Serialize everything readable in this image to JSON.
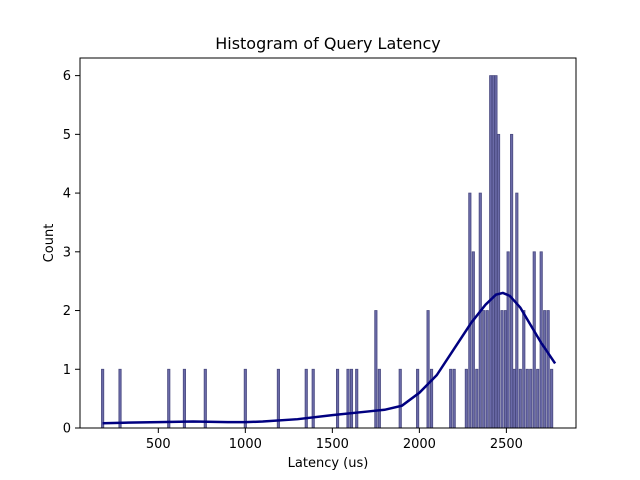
{
  "chart_data": {
    "type": "bar",
    "title": "Histogram of Query Latency",
    "xlabel": "Latency (us)",
    "ylabel": "Count",
    "xlim": [
      50,
      2900
    ],
    "ylim": [
      0,
      6.3
    ],
    "x_ticks": [
      500,
      1000,
      1500,
      2000,
      2500
    ],
    "y_ticks": [
      0,
      1,
      2,
      3,
      4,
      5,
      6
    ],
    "bin_width": 13.3,
    "bar_color": "#6a6aa8",
    "bar_edge_color": "#4a4a80",
    "kde_color": "#000080",
    "grid": false,
    "bins": [
      {
        "x": 180,
        "count": 1
      },
      {
        "x": 280,
        "count": 1
      },
      {
        "x": 560,
        "count": 1
      },
      {
        "x": 650,
        "count": 1
      },
      {
        "x": 770,
        "count": 1
      },
      {
        "x": 1000,
        "count": 1
      },
      {
        "x": 1190,
        "count": 1
      },
      {
        "x": 1350,
        "count": 1
      },
      {
        "x": 1390,
        "count": 1
      },
      {
        "x": 1530,
        "count": 1
      },
      {
        "x": 1590,
        "count": 1
      },
      {
        "x": 1610,
        "count": 1
      },
      {
        "x": 1640,
        "count": 1
      },
      {
        "x": 1750,
        "count": 2
      },
      {
        "x": 1770,
        "count": 1
      },
      {
        "x": 1890,
        "count": 1
      },
      {
        "x": 1990,
        "count": 1
      },
      {
        "x": 2050,
        "count": 2
      },
      {
        "x": 2070,
        "count": 1
      },
      {
        "x": 2180,
        "count": 1
      },
      {
        "x": 2200,
        "count": 1
      },
      {
        "x": 2270,
        "count": 1
      },
      {
        "x": 2290,
        "count": 4
      },
      {
        "x": 2310,
        "count": 3
      },
      {
        "x": 2330,
        "count": 1
      },
      {
        "x": 2350,
        "count": 4
      },
      {
        "x": 2370,
        "count": 2
      },
      {
        "x": 2390,
        "count": 2
      },
      {
        "x": 2410,
        "count": 6
      },
      {
        "x": 2425,
        "count": 6
      },
      {
        "x": 2440,
        "count": 6
      },
      {
        "x": 2455,
        "count": 5
      },
      {
        "x": 2475,
        "count": 2
      },
      {
        "x": 2495,
        "count": 2
      },
      {
        "x": 2510,
        "count": 3
      },
      {
        "x": 2530,
        "count": 5
      },
      {
        "x": 2545,
        "count": 1
      },
      {
        "x": 2560,
        "count": 4
      },
      {
        "x": 2580,
        "count": 1
      },
      {
        "x": 2600,
        "count": 2
      },
      {
        "x": 2620,
        "count": 1
      },
      {
        "x": 2640,
        "count": 1
      },
      {
        "x": 2660,
        "count": 3
      },
      {
        "x": 2680,
        "count": 1
      },
      {
        "x": 2700,
        "count": 3
      },
      {
        "x": 2720,
        "count": 2
      },
      {
        "x": 2740,
        "count": 2
      },
      {
        "x": 2760,
        "count": 1
      }
    ],
    "kde": {
      "x": [
        180,
        300,
        500,
        700,
        900,
        1000,
        1100,
        1300,
        1500,
        1700,
        1800,
        1900,
        2000,
        2100,
        2200,
        2300,
        2380,
        2440,
        2480,
        2520,
        2580,
        2640,
        2700,
        2780
      ],
      "y": [
        0.08,
        0.09,
        0.1,
        0.11,
        0.1,
        0.1,
        0.11,
        0.15,
        0.22,
        0.28,
        0.31,
        0.38,
        0.6,
        0.9,
        1.35,
        1.8,
        2.1,
        2.27,
        2.3,
        2.25,
        2.05,
        1.75,
        1.45,
        1.1
      ]
    }
  }
}
